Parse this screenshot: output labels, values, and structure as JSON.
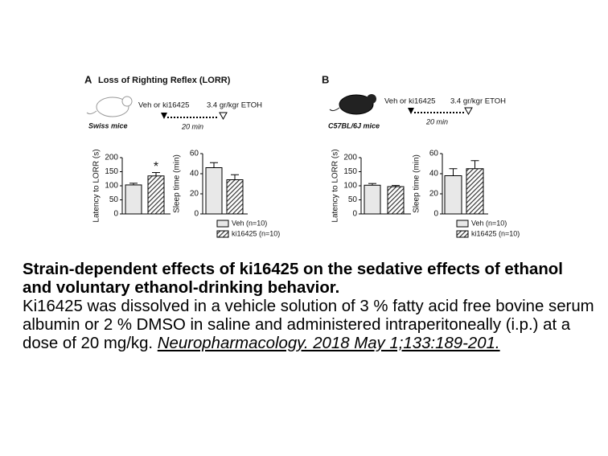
{
  "panels": [
    {
      "label": "A",
      "title": "Loss of Righting Reflex (LORR)",
      "strain": "Swiss mice",
      "treatment": "Veh or ki16425",
      "dose": "3.4 gr/kgr ETOH",
      "interval": "20 min"
    },
    {
      "label": "B",
      "strain": "C57BL/6J mice",
      "treatment": "Veh or ki16425",
      "dose": "3.4 gr/kgr ETOH",
      "interval": "20 min"
    }
  ],
  "chart_data": [
    {
      "type": "bar",
      "ylabel": "Latency to LORR (s)",
      "ylim": [
        0,
        200
      ],
      "yticks": [
        0,
        50,
        100,
        150,
        200
      ],
      "series": [
        {
          "color": "#e8e8e8",
          "values": [
            103
          ],
          "errors": [
            6
          ]
        },
        {
          "color": "#444444",
          "pattern": "diagonal",
          "values": [
            135
          ],
          "errors": [
            12
          ],
          "annotation": "*"
        }
      ]
    },
    {
      "type": "bar",
      "ylabel": "Sleep time (min)",
      "ylim": [
        0,
        60
      ],
      "yticks": [
        0,
        20,
        40,
        60
      ],
      "legend": "below",
      "series": [
        {
          "name": "Veh (n=10)",
          "color": "#e8e8e8",
          "values": [
            46
          ],
          "errors": [
            5
          ]
        },
        {
          "name": "ki16425 (n=10)",
          "color": "#444444",
          "pattern": "diagonal",
          "values": [
            34
          ],
          "errors": [
            5
          ]
        }
      ]
    },
    {
      "type": "bar",
      "ylabel": "Latency to LORR (s)",
      "ylim": [
        0,
        200
      ],
      "yticks": [
        0,
        50,
        100,
        150,
        200
      ],
      "series": [
        {
          "color": "#e8e8e8",
          "values": [
            102
          ],
          "errors": [
            6
          ]
        },
        {
          "color": "#444444",
          "pattern": "diagonal",
          "values": [
            97
          ],
          "errors": [
            4
          ]
        }
      ]
    },
    {
      "type": "bar",
      "ylabel": "Sleep time (min)",
      "ylim": [
        0,
        60
      ],
      "yticks": [
        0,
        20,
        40,
        60
      ],
      "legend": "below",
      "series": [
        {
          "name": "Veh (n=10)",
          "color": "#e8e8e8",
          "values": [
            38
          ],
          "errors": [
            7
          ]
        },
        {
          "name": "ki16425 (n=10)",
          "color": "#444444",
          "pattern": "diagonal",
          "values": [
            45
          ],
          "errors": [
            8
          ]
        }
      ]
    }
  ],
  "caption": {
    "title": "Strain-dependent effects of ki16425 on the sedative effects of ethanol and voluntary ethanol-drinking behavior.",
    "body": "Ki16425 was dissolved in a vehicle solution of 3 % fatty acid free bovine serum albumin or 2 % DMSO in saline and administered intraperitoneally (i.p.) at a dose of 20 mg/kg.",
    "citation": "Neuropharmacology. 2018 May 1;133:189-201."
  }
}
